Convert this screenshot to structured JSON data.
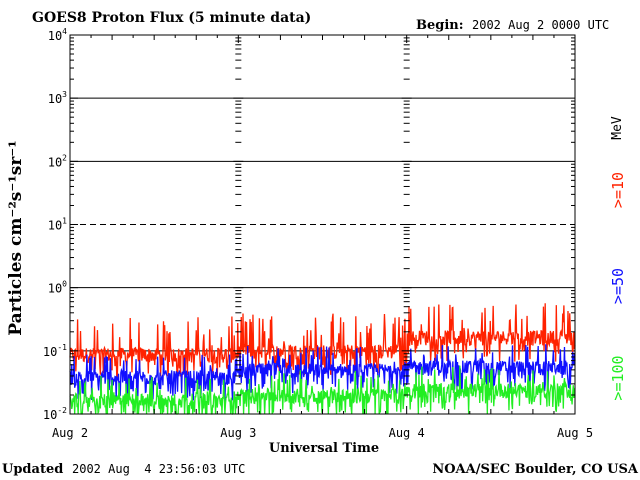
{
  "chart_data": {
    "type": "line",
    "title": "GOES8 Proton Flux (5 minute data)",
    "begin_label": "Begin:",
    "begin_value": "2002 Aug 2 0000 UTC",
    "xlabel": "Universal Time",
    "ylabel": "Particles cm⁻²s⁻¹sr⁻¹",
    "y_scale": "log",
    "ylim": [
      0.01,
      10000
    ],
    "y_ticks": [
      {
        "value": 0.01,
        "base": "10",
        "exp": "-2"
      },
      {
        "value": 0.1,
        "base": "10",
        "exp": "-1"
      },
      {
        "value": 1,
        "base": "10",
        "exp": "0"
      },
      {
        "value": 10,
        "base": "10",
        "exp": "1"
      },
      {
        "value": 100,
        "base": "10",
        "exp": "2"
      },
      {
        "value": 1000,
        "base": "10",
        "exp": "3"
      },
      {
        "value": 10000,
        "base": "10",
        "exp": "4"
      }
    ],
    "x_ticks": [
      "Aug 2",
      "Aug 3",
      "Aug 4",
      "Aug 5"
    ],
    "x_range_days": [
      0,
      3
    ],
    "legend_placement": "right",
    "legend_unit": "MeV",
    "legend_entries": [
      ">=10",
      ">=50",
      ">=100"
    ],
    "series": [
      {
        "name": ">=10",
        "color": "#ff2200",
        "daily_baseline": [
          0.08,
          0.09,
          0.15
        ],
        "daily_spike_max": [
          0.35,
          0.4,
          0.6
        ]
      },
      {
        "name": ">=50",
        "color": "#1010ff",
        "daily_baseline": [
          0.035,
          0.045,
          0.05
        ],
        "daily_spike_max": [
          0.09,
          0.12,
          0.13
        ]
      },
      {
        "name": ">=100",
        "color": "#22ee22",
        "daily_baseline": [
          0.015,
          0.018,
          0.022
        ],
        "daily_spike_max": [
          0.04,
          0.05,
          0.06
        ]
      }
    ]
  },
  "footer": {
    "updated_label": "Updated",
    "updated_value": "2002 Aug  4 23:56:03 UTC",
    "credit": "NOAA/SEC Boulder, CO USA"
  }
}
